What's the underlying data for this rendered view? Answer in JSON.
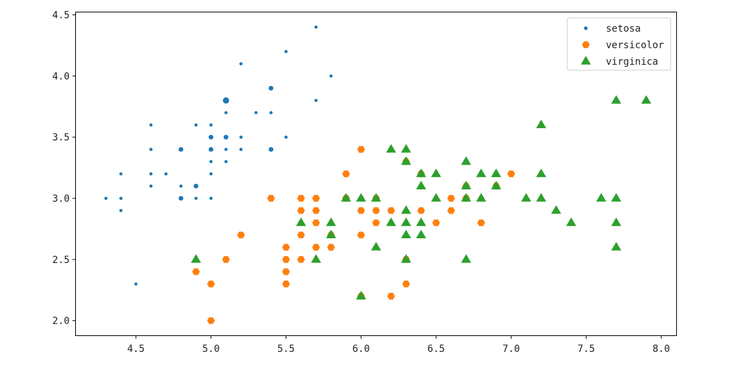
{
  "chart_data": {
    "type": "scatter",
    "title": "",
    "xlabel": "",
    "ylabel": "",
    "xlim": [
      4.1,
      8.1
    ],
    "ylim": [
      1.88,
      4.52
    ],
    "xticks": [
      "4.5",
      "5.0",
      "5.5",
      "6.0",
      "6.5",
      "7.0",
      "7.5",
      "8.0"
    ],
    "yticks": [
      "2.0",
      "2.5",
      "3.0",
      "3.5",
      "4.0",
      "4.5"
    ],
    "grid": false,
    "legend_position": "top-right",
    "series": [
      {
        "name": "setosa",
        "color": "#1f77b4",
        "marker": "circle",
        "points": [
          [
            4.3,
            3.0
          ],
          [
            4.4,
            2.9
          ],
          [
            4.4,
            3.0
          ],
          [
            4.4,
            3.2
          ],
          [
            4.5,
            2.3
          ],
          [
            4.6,
            3.1
          ],
          [
            4.6,
            3.2
          ],
          [
            4.6,
            3.4
          ],
          [
            4.6,
            3.6
          ],
          [
            4.7,
            3.2
          ],
          [
            4.8,
            3.0
          ],
          [
            4.8,
            3.0
          ],
          [
            4.8,
            3.1
          ],
          [
            4.8,
            3.4
          ],
          [
            4.8,
            3.4
          ],
          [
            4.9,
            3.0
          ],
          [
            4.9,
            3.1
          ],
          [
            4.9,
            3.1
          ],
          [
            4.9,
            3.6
          ],
          [
            5.0,
            3.0
          ],
          [
            5.0,
            3.2
          ],
          [
            5.0,
            3.3
          ],
          [
            5.0,
            3.4
          ],
          [
            5.0,
            3.4
          ],
          [
            5.0,
            3.5
          ],
          [
            5.0,
            3.5
          ],
          [
            5.0,
            3.6
          ],
          [
            5.1,
            3.3
          ],
          [
            5.1,
            3.4
          ],
          [
            5.1,
            3.5
          ],
          [
            5.1,
            3.5
          ],
          [
            5.1,
            3.7
          ],
          [
            5.1,
            3.8
          ],
          [
            5.1,
            3.8
          ],
          [
            5.1,
            3.8
          ],
          [
            5.2,
            3.4
          ],
          [
            5.2,
            3.5
          ],
          [
            5.2,
            4.1
          ],
          [
            5.3,
            3.7
          ],
          [
            5.4,
            3.4
          ],
          [
            5.4,
            3.4
          ],
          [
            5.4,
            3.7
          ],
          [
            5.4,
            3.9
          ],
          [
            5.4,
            3.9
          ],
          [
            5.5,
            3.5
          ],
          [
            5.5,
            4.2
          ],
          [
            5.7,
            3.8
          ],
          [
            5.7,
            4.4
          ],
          [
            5.8,
            4.0
          ]
        ]
      },
      {
        "name": "versicolor",
        "color": "#ff7f0e",
        "marker": "hexagon",
        "points": [
          [
            4.9,
            2.4
          ],
          [
            5.0,
            2.0
          ],
          [
            5.0,
            2.3
          ],
          [
            5.1,
            2.5
          ],
          [
            5.2,
            2.7
          ],
          [
            5.4,
            3.0
          ],
          [
            5.5,
            2.3
          ],
          [
            5.5,
            2.4
          ],
          [
            5.5,
            2.5
          ],
          [
            5.5,
            2.6
          ],
          [
            5.6,
            2.5
          ],
          [
            5.6,
            2.7
          ],
          [
            5.6,
            2.9
          ],
          [
            5.6,
            3.0
          ],
          [
            5.7,
            2.6
          ],
          [
            5.7,
            2.8
          ],
          [
            5.7,
            2.9
          ],
          [
            5.7,
            3.0
          ],
          [
            5.8,
            2.6
          ],
          [
            5.8,
            2.7
          ],
          [
            5.9,
            3.0
          ],
          [
            5.9,
            3.2
          ],
          [
            6.0,
            2.2
          ],
          [
            6.0,
            2.7
          ],
          [
            6.0,
            2.9
          ],
          [
            6.0,
            3.4
          ],
          [
            6.1,
            2.8
          ],
          [
            6.1,
            2.9
          ],
          [
            6.1,
            3.0
          ],
          [
            6.2,
            2.2
          ],
          [
            6.2,
            2.9
          ],
          [
            6.3,
            2.3
          ],
          [
            6.3,
            2.5
          ],
          [
            6.3,
            3.3
          ],
          [
            6.4,
            2.9
          ],
          [
            6.4,
            3.2
          ],
          [
            6.5,
            2.8
          ],
          [
            6.6,
            2.9
          ],
          [
            6.6,
            3.0
          ],
          [
            6.7,
            3.0
          ],
          [
            6.7,
            3.1
          ],
          [
            6.8,
            2.8
          ],
          [
            6.9,
            3.1
          ],
          [
            7.0,
            3.2
          ]
        ]
      },
      {
        "name": "virginica",
        "color": "#2ca02c",
        "marker": "triangle",
        "points": [
          [
            4.9,
            2.5
          ],
          [
            5.6,
            2.8
          ],
          [
            5.7,
            2.5
          ],
          [
            5.8,
            2.7
          ],
          [
            5.8,
            2.8
          ],
          [
            5.9,
            3.0
          ],
          [
            6.0,
            2.2
          ],
          [
            6.0,
            3.0
          ],
          [
            6.1,
            2.6
          ],
          [
            6.1,
            3.0
          ],
          [
            6.2,
            2.8
          ],
          [
            6.2,
            3.4
          ],
          [
            6.3,
            2.5
          ],
          [
            6.3,
            2.7
          ],
          [
            6.3,
            2.8
          ],
          [
            6.3,
            2.9
          ],
          [
            6.3,
            3.3
          ],
          [
            6.3,
            3.4
          ],
          [
            6.4,
            2.7
          ],
          [
            6.4,
            2.8
          ],
          [
            6.4,
            3.1
          ],
          [
            6.4,
            3.2
          ],
          [
            6.5,
            3.0
          ],
          [
            6.5,
            3.2
          ],
          [
            6.7,
            2.5
          ],
          [
            6.7,
            3.0
          ],
          [
            6.7,
            3.1
          ],
          [
            6.7,
            3.3
          ],
          [
            6.8,
            3.0
          ],
          [
            6.8,
            3.2
          ],
          [
            6.9,
            3.1
          ],
          [
            6.9,
            3.2
          ],
          [
            7.1,
            3.0
          ],
          [
            7.2,
            3.0
          ],
          [
            7.2,
            3.2
          ],
          [
            7.2,
            3.6
          ],
          [
            7.3,
            2.9
          ],
          [
            7.4,
            2.8
          ],
          [
            7.6,
            3.0
          ],
          [
            7.7,
            2.6
          ],
          [
            7.7,
            2.8
          ],
          [
            7.7,
            3.0
          ],
          [
            7.7,
            3.8
          ],
          [
            7.9,
            3.8
          ]
        ]
      }
    ]
  }
}
